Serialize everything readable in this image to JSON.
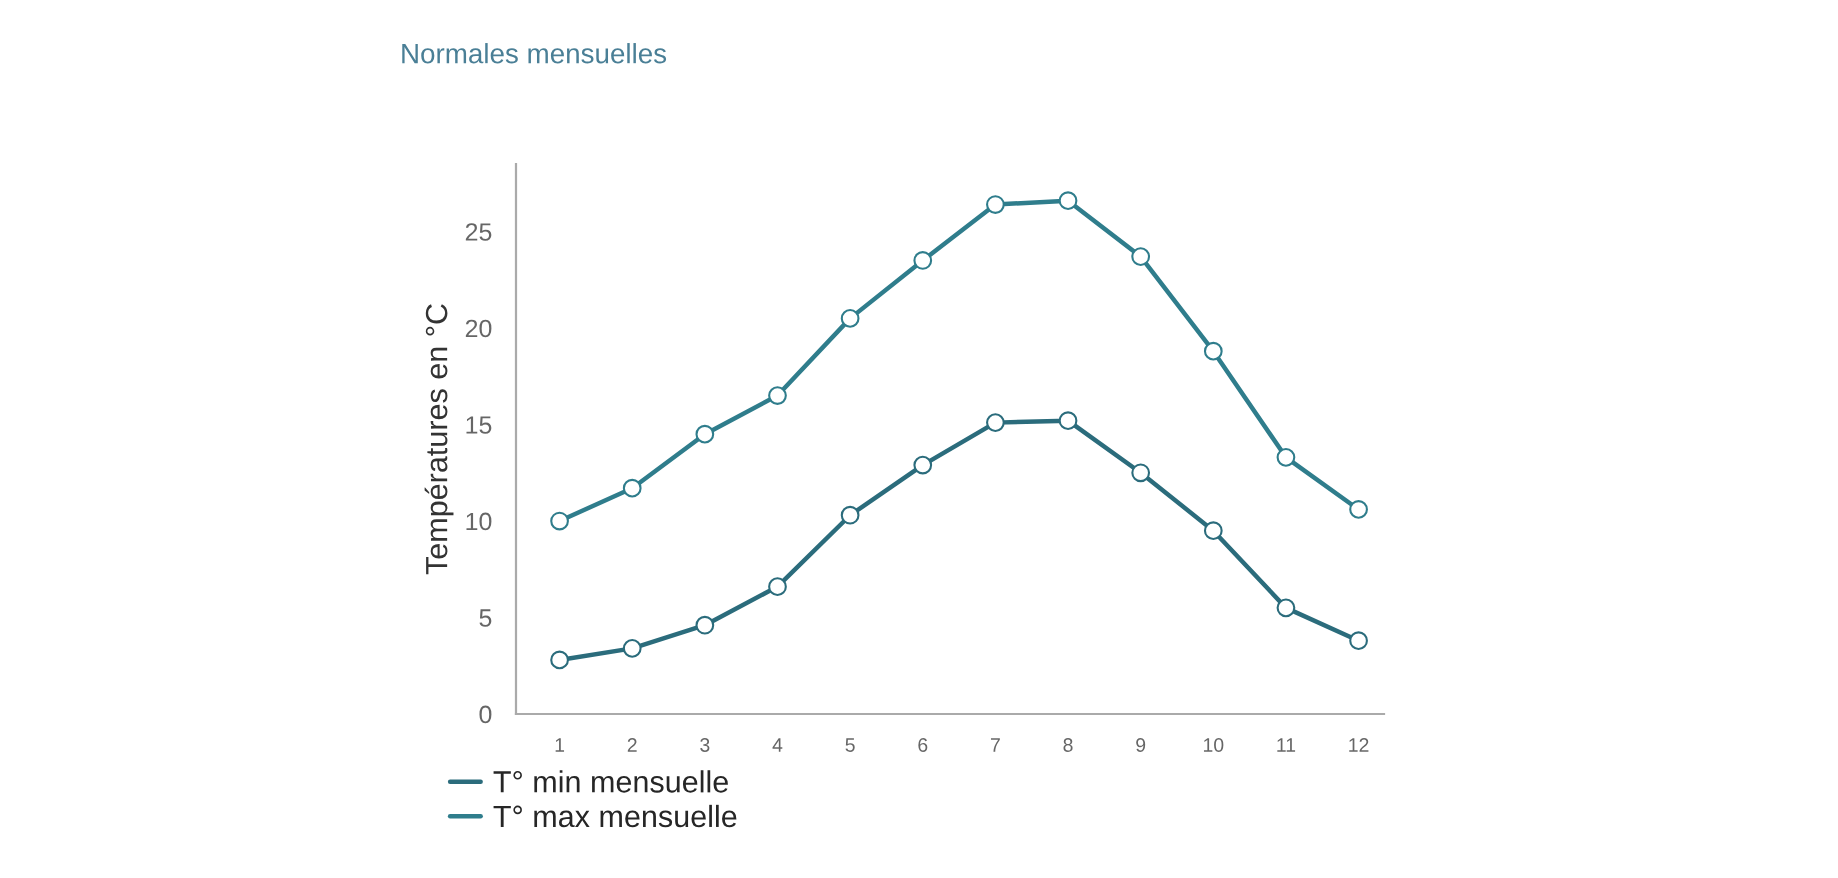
{
  "chart_data": {
    "type": "line",
    "title": "Normales mensuelles",
    "ylabel": "Températures en °C",
    "x": [
      1,
      2,
      3,
      4,
      5,
      6,
      7,
      8,
      9,
      10,
      11,
      12
    ],
    "series": [
      {
        "name": "T° min mensuelle",
        "color": "#2b6c7c",
        "values": [
          2.8,
          3.4,
          4.6,
          6.6,
          10.3,
          12.9,
          15.1,
          15.2,
          12.5,
          9.5,
          5.5,
          3.8
        ]
      },
      {
        "name": "T° max mensuelle",
        "color": "#2f7d8c",
        "values": [
          10.0,
          11.7,
          14.5,
          16.5,
          20.5,
          23.5,
          26.4,
          26.6,
          23.7,
          18.8,
          13.3,
          10.6
        ]
      }
    ],
    "xlim": [
      0.4,
      12.35
    ],
    "xticks": [
      1,
      2,
      3,
      4,
      5,
      6,
      7,
      8,
      9,
      10,
      11,
      12
    ],
    "ylim": [
      0,
      28.5
    ],
    "yticks": [
      0,
      5,
      10,
      15,
      20,
      25
    ],
    "grid": false,
    "legend": "bottom left",
    "marker": "circle",
    "line_style": "solid"
  }
}
